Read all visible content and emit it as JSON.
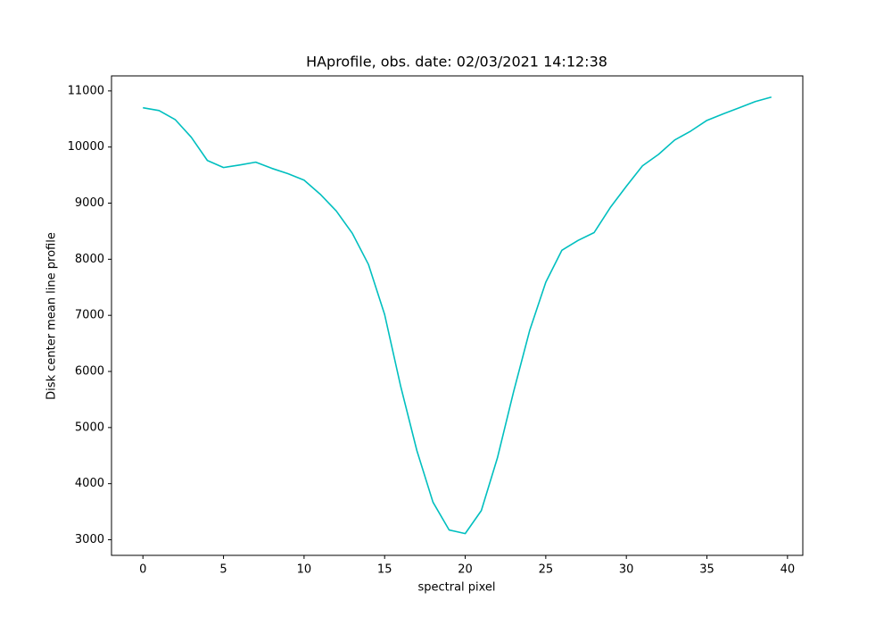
{
  "chart_data": {
    "type": "line",
    "title": "HAprofile, obs. date: 02/03/2021 14:12:38",
    "x_label": "spectral pixel",
    "y_label": "Disk center mean line profile",
    "x": [
      0,
      1,
      2,
      3,
      4,
      5,
      6,
      7,
      8,
      9,
      10,
      11,
      12,
      13,
      14,
      15,
      16,
      17,
      18,
      19,
      20,
      21,
      22,
      23,
      24,
      25,
      26,
      27,
      28,
      29,
      30,
      31,
      32,
      33,
      34,
      35,
      36,
      37,
      38,
      39
    ],
    "values": [
      10700,
      10650,
      10490,
      10175,
      9760,
      9635,
      9680,
      9730,
      9620,
      9525,
      9410,
      9160,
      8860,
      8460,
      7905,
      7015,
      5730,
      4590,
      3670,
      3175,
      3110,
      3520,
      4460,
      5635,
      6730,
      7590,
      8160,
      8335,
      8475,
      8920,
      9300,
      9665,
      9870,
      10125,
      10285,
      10475,
      10590,
      10700,
      10810,
      10890
    ],
    "color": "#00bfbf",
    "xlim": [
      -1.95,
      40.95
    ],
    "xticks": [
      0,
      5,
      10,
      15,
      20,
      25,
      30,
      35,
      40
    ],
    "ylim": [
      2722,
      11268
    ],
    "yticks": [
      3000,
      4000,
      5000,
      6000,
      7000,
      8000,
      9000,
      10000,
      11000
    ]
  }
}
